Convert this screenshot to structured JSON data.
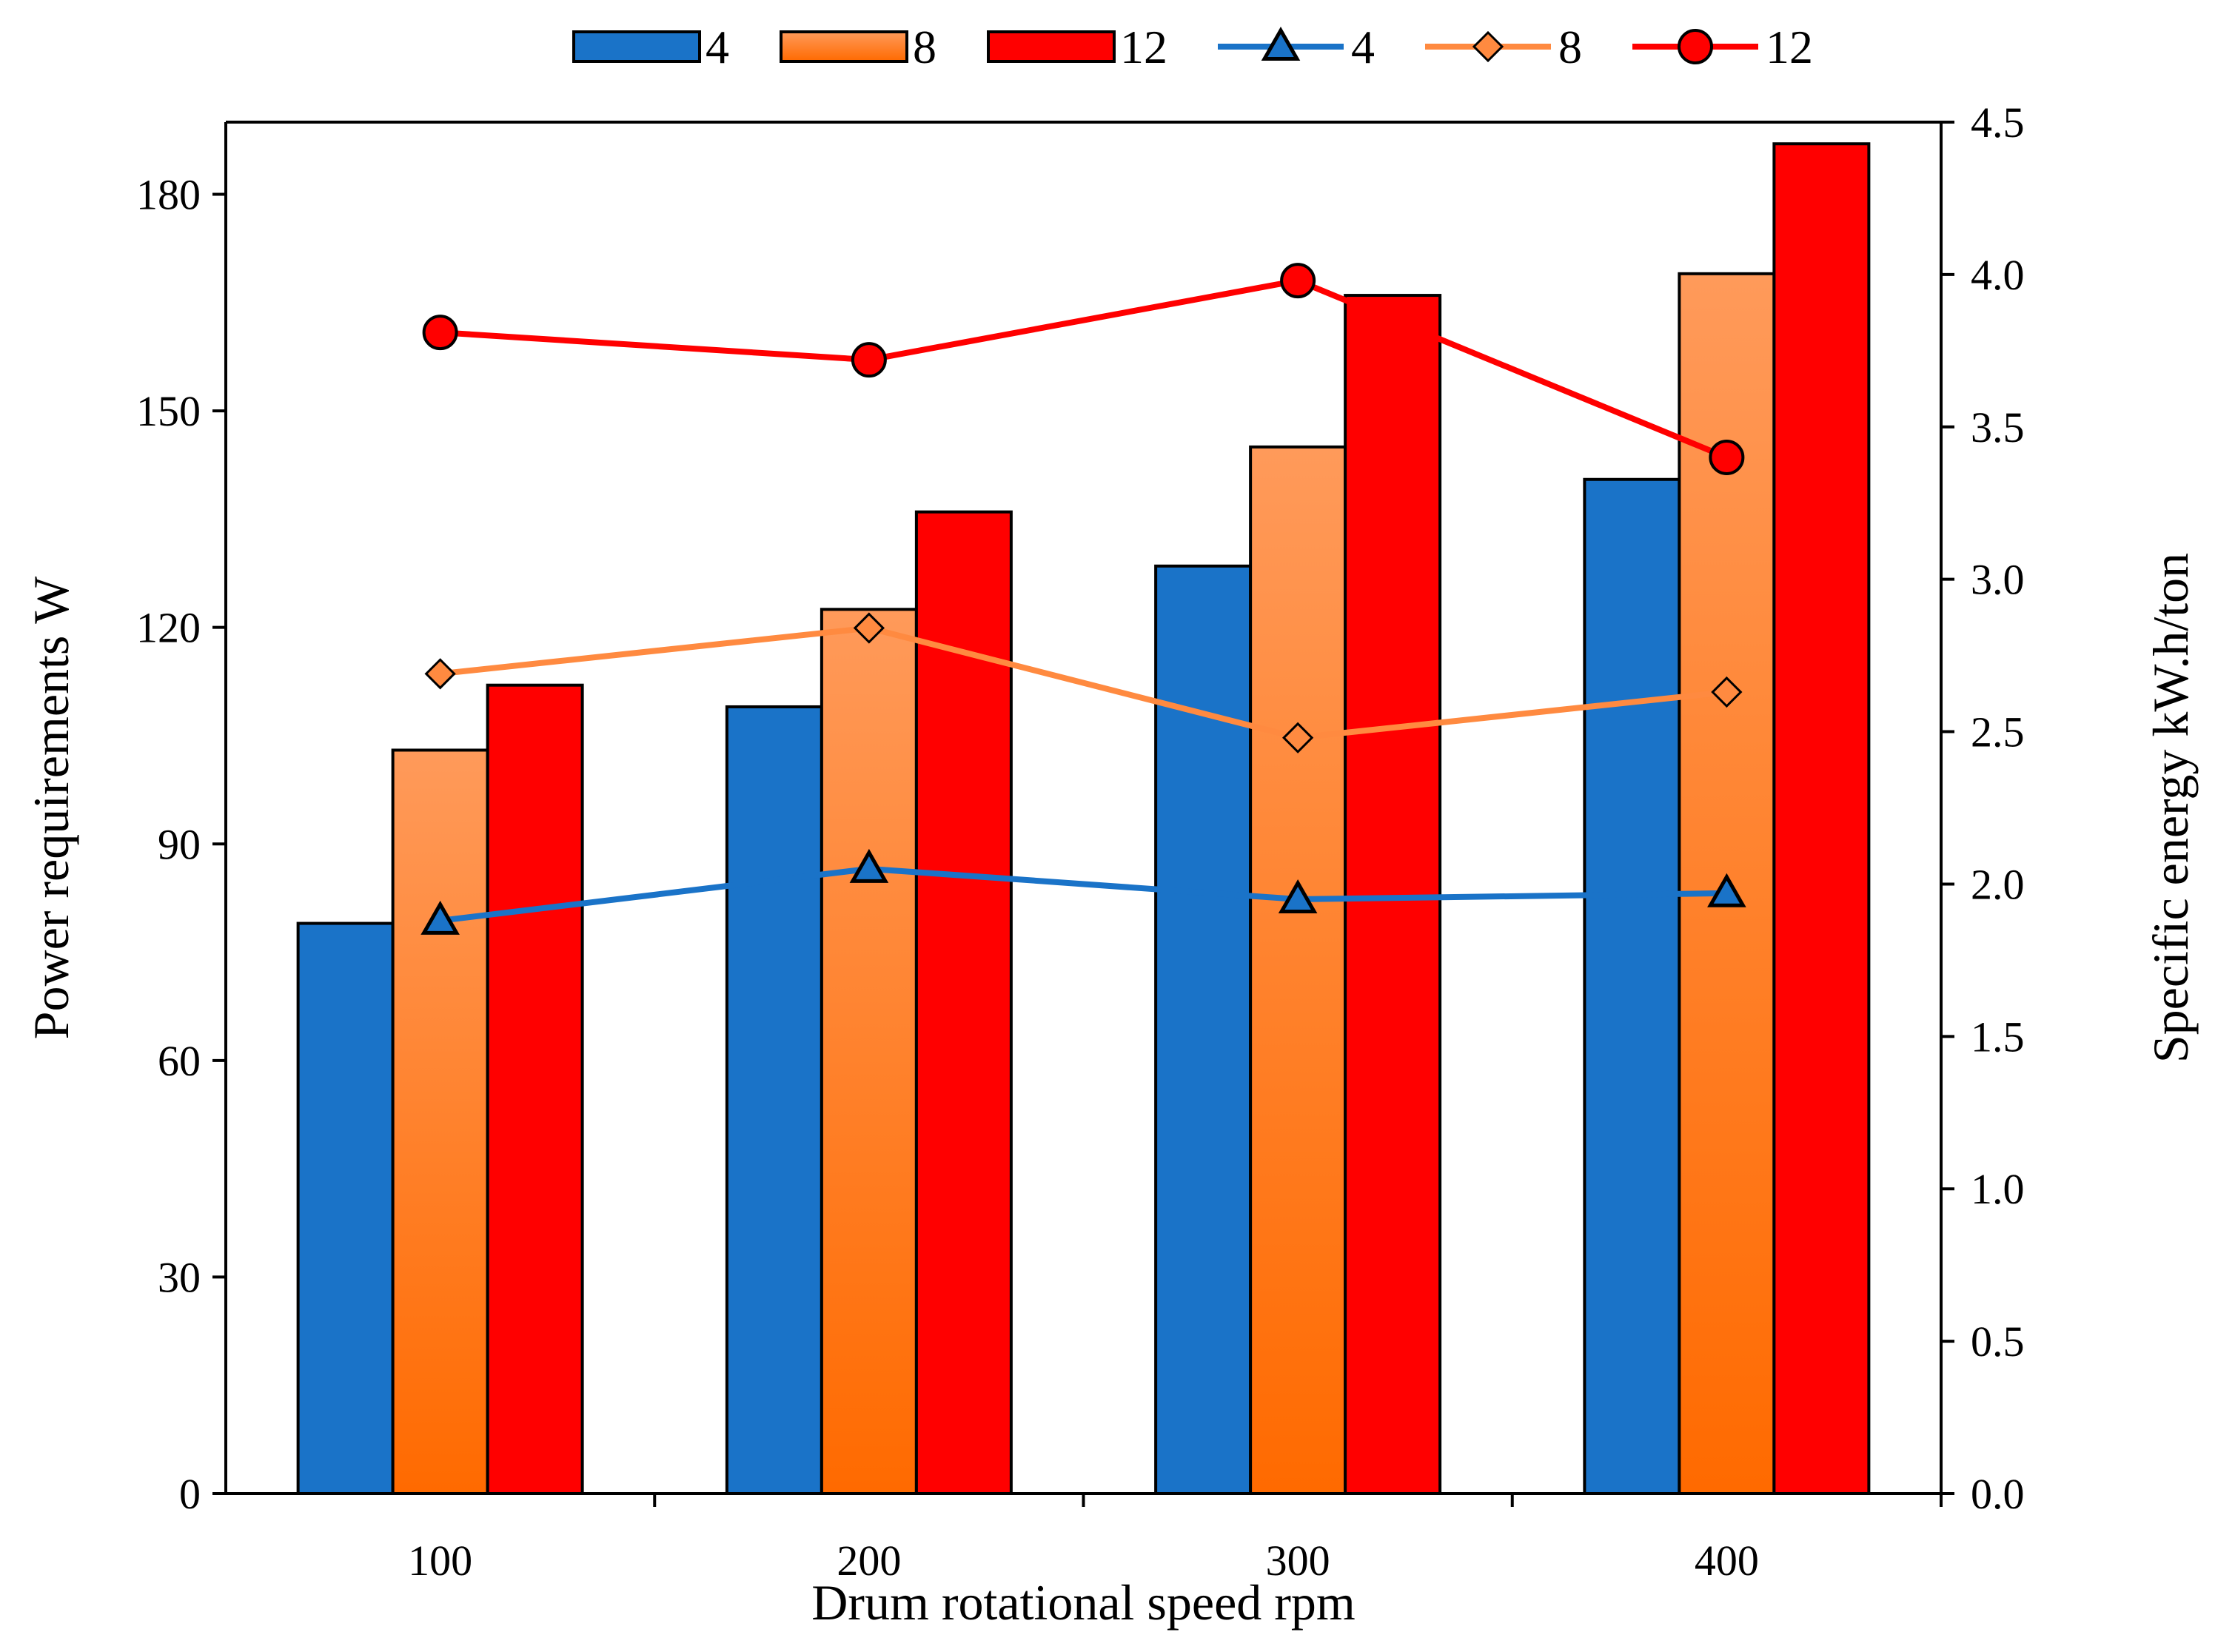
{
  "chart_data": {
    "type": "bar",
    "categories": [
      "100",
      "200",
      "300",
      "400"
    ],
    "xlabel": "Drum rotational speed rpm",
    "ylabel": "Power requirements W",
    "y2label": "Specific energy kW.h/ton",
    "ylim": [
      0,
      190
    ],
    "yticks": [
      0,
      30,
      60,
      90,
      120,
      150,
      180
    ],
    "y2lim": [
      0,
      4.5
    ],
    "y2ticks": [
      "0.0",
      "0.5",
      "1.0",
      "1.5",
      "2.0",
      "2.5",
      "3.0",
      "3.5",
      "4.0",
      "4.5"
    ],
    "legend_position": "top",
    "bar_series": [
      {
        "name": "4",
        "values": [
          79,
          109,
          128.5,
          140.5
        ],
        "color": "#1a73c8"
      },
      {
        "name": "8",
        "values": [
          103,
          122.5,
          145,
          169
        ],
        "color": "#ff8a40"
      },
      {
        "name": "12",
        "values": [
          112,
          136,
          166,
          187
        ],
        "color": "#ff0000"
      }
    ],
    "line_series": [
      {
        "name": "4",
        "values": [
          1.88,
          2.05,
          1.95,
          1.97
        ],
        "color": "#1a73c8",
        "marker": "triangle"
      },
      {
        "name": "8",
        "values": [
          2.69,
          2.84,
          2.48,
          2.63
        ],
        "color": "#ff8a40",
        "marker": "diamond"
      },
      {
        "name": "12",
        "values": [
          3.81,
          3.72,
          3.98,
          3.4
        ],
        "color": "#ff0000",
        "marker": "circle"
      }
    ]
  }
}
